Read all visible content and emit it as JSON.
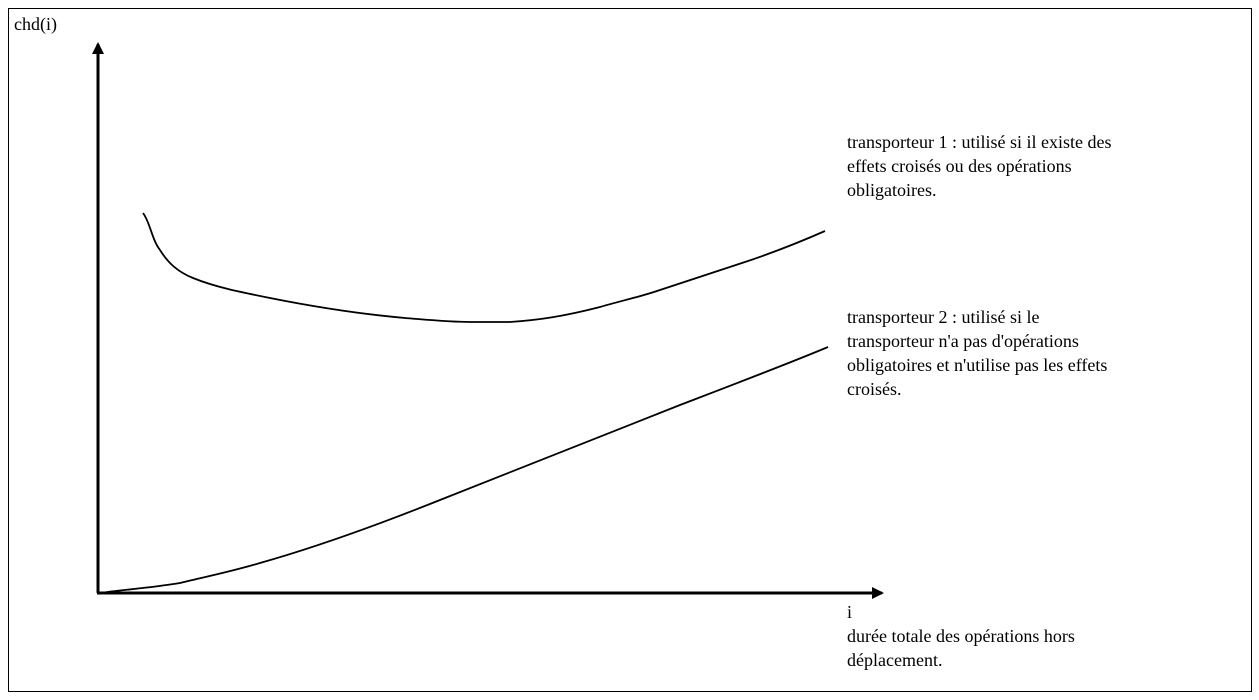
{
  "chart_data": {
    "type": "line",
    "ylabel": "chd(i)",
    "xlabel": "i",
    "xlabel_description": [
      "durée totale des opérations hors",
      "déplacement."
    ],
    "annotations": {
      "transporteur1": [
        "transporteur 1 : utilisé si il existe des",
        "effets croisés ou des opérations",
        "obligatoires."
      ],
      "transporteur2": [
        "transporteur 2 :  utilisé si le",
        "transporteur n'a pas d'opérations",
        "obligatoires  et n'utilise pas les effets",
        "croisés."
      ]
    }
  }
}
